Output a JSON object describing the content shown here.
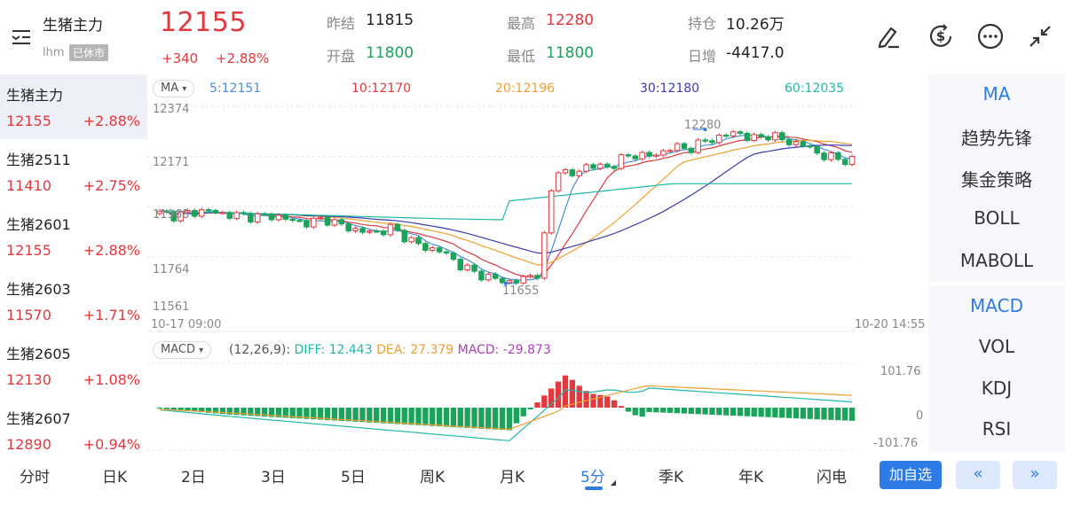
{
  "header": {
    "contract_name": "生猪主力",
    "contract_code": "lhm",
    "status_badge": "已休市",
    "last_price": "12155",
    "change_abs": "+340",
    "change_pct": "+2.88%",
    "stats": {
      "prev_settle_label": "昨结",
      "prev_settle_value": "11815",
      "open_label": "开盘",
      "open_value": "11800",
      "high_label": "最高",
      "high_value": "12280",
      "low_label": "最低",
      "low_value": "11800",
      "open_interest_label": "持仓",
      "open_interest_value": "10.26万",
      "daily_change_label": "日增",
      "daily_change_value": "-4417.0"
    },
    "icons": [
      "draw-icon",
      "currency-icon",
      "more-icon",
      "collapse-icon"
    ]
  },
  "sidebar": {
    "items": [
      {
        "name": "生猪主力",
        "price": "12155",
        "change": "+2.88%"
      },
      {
        "name": "生猪2511",
        "price": "11410",
        "change": "+2.75%"
      },
      {
        "name": "生猪2601",
        "price": "12155",
        "change": "+2.88%"
      },
      {
        "name": "生猪2603",
        "price": "11570",
        "change": "+1.71%"
      },
      {
        "name": "生猪2605",
        "price": "12130",
        "change": "+1.08%"
      },
      {
        "name": "生猪2607",
        "price": "12890",
        "change": "+0.94%"
      }
    ]
  },
  "main_chart": {
    "indicator_pill": "MA",
    "ma_labels": [
      {
        "text": "5:12151",
        "color": "#4a90d9"
      },
      {
        "text": "10:12170",
        "color": "#e2383e"
      },
      {
        "text": "20:12196",
        "color": "#f0a030"
      },
      {
        "text": "30:12180",
        "color": "#3a3ab0"
      },
      {
        "text": "60:12035",
        "color": "#20b8a8"
      }
    ],
    "y_labels": [
      "12374",
      "12171",
      "11968",
      "11764",
      "11561"
    ],
    "high_marker": "12280",
    "low_marker": "11655",
    "start_time": "10-17 09:00",
    "end_time": "10-20 14:55"
  },
  "macd_chart": {
    "indicator_pill": "MACD",
    "params": "(12,26,9):",
    "diff_text": "DIFF: 12.443",
    "dea_text": "DEA: 27.379",
    "macd_text": "MACD: -29.873",
    "y_top": "101.76",
    "y_mid": "0",
    "y_bottom": "-101.76"
  },
  "right_panel": {
    "main_items": [
      "MA",
      "趋势先锋",
      "集金策略",
      "BOLL",
      "MABOLL"
    ],
    "sub_items": [
      "MACD",
      "VOL",
      "KDJ",
      "RSI"
    ]
  },
  "bottom_bar": {
    "tabs": [
      "分时",
      "日K",
      "2日",
      "3日",
      "5日",
      "周K",
      "月K",
      "5分",
      "季K",
      "年K",
      "闪电"
    ],
    "add_watchlist": "加自选",
    "prev_label": "«",
    "next_label": "»"
  },
  "colors": {
    "up": "#e2383e",
    "down": "#1aa35b",
    "accent": "#2f7be5"
  },
  "chart_data": {
    "type": "candlestick",
    "interval": "5分",
    "x_range": [
      "10-17 09:00",
      "10-20 14:55"
    ],
    "ylim": [
      11561,
      12374
    ],
    "close_path": [
      11940,
      11930,
      11945,
      11950,
      11935,
      11930,
      11925,
      11930,
      11910,
      11900,
      11920,
      11890,
      11870,
      11860,
      11880,
      11840,
      11800,
      11790,
      11740,
      11700,
      11680,
      11660,
      11670,
      11700,
      12130,
      12090,
      12140,
      12120,
      12160,
      12180,
      12170,
      12210,
      12200,
      12230,
      12250,
      12270,
      12240,
      12260,
      12230,
      12220,
      12180,
      12160,
      12155
    ],
    "high": 12280,
    "low": 11655,
    "ma": {
      "MA5": 12151,
      "MA10": 12170,
      "MA20": 12196,
      "MA30": 12180,
      "MA60": 12035
    },
    "macd": {
      "params": "12,26,9",
      "DIFF": 12.443,
      "DEA": 27.379,
      "MACD": -29.873,
      "ylim": [
        -101.76,
        101.76
      ]
    }
  }
}
